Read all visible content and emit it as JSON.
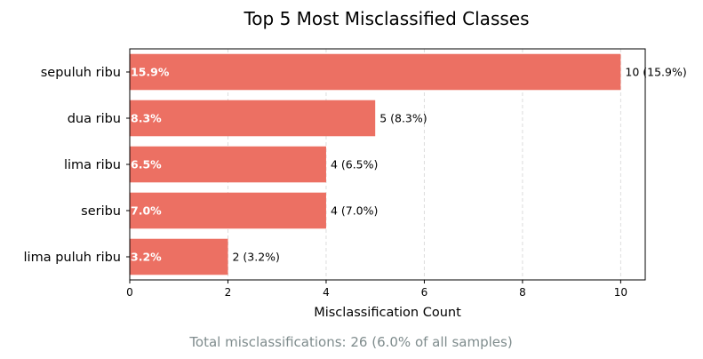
{
  "chart_data": {
    "type": "bar",
    "orientation": "horizontal",
    "title": "Top 5 Most Misclassified Classes",
    "xlabel": "Misclassification Count",
    "ylabel": "",
    "categories": [
      "sepuluh ribu",
      "dua ribu",
      "lima ribu",
      "seribu",
      "lima puluh ribu"
    ],
    "values": [
      10,
      5,
      4,
      4,
      2
    ],
    "inside_labels": [
      "15.9%",
      "8.3%",
      "6.5%",
      "7.0%",
      "3.2%"
    ],
    "value_labels": [
      "10 (15.9%)",
      "5 (8.3%)",
      "4 (6.5%)",
      "4 (7.0%)",
      "2 (3.2%)"
    ],
    "xlim": [
      0,
      10.5
    ],
    "xticks": [
      0,
      2,
      4,
      6,
      8,
      10
    ],
    "grid": "x-dashed",
    "bar_color": "#ec7063",
    "footer": "Total misclassifications: 26 (6.0% of all samples)"
  }
}
